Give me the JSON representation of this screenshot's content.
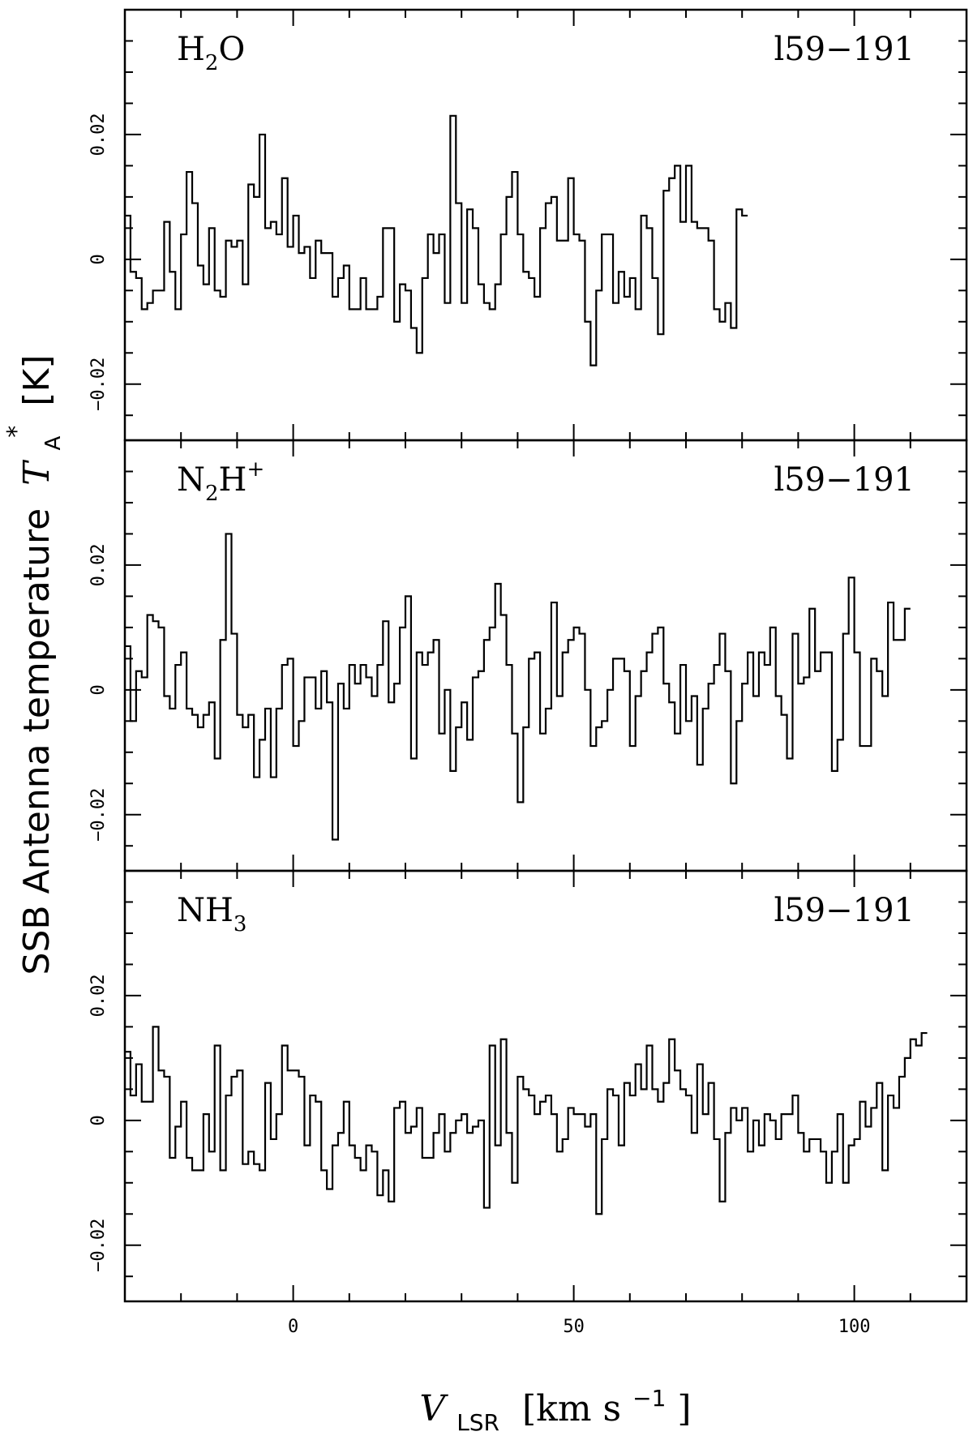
{
  "chart_data": {
    "type": "line",
    "xlabel": "V",
    "xlabel_sub": "LSR",
    "xlabel_unit": "[km s",
    "xlabel_unit_sup": "−1",
    "xlabel_unit_close": "]",
    "ylabel": "SSB Antenna temperature",
    "ylabel_symbol": "T",
    "ylabel_sub": "A",
    "ylabel_sup": "*",
    "ylabel_unit": "[K]",
    "xlim": [
      -30,
      120
    ],
    "x_ticks": [
      0,
      50,
      100
    ],
    "x_tick_labels": [
      "0",
      "50",
      "100"
    ],
    "panels": [
      {
        "molecule_main": "H",
        "molecule_sub": "2",
        "molecule_rest": "O",
        "molecule_sup": "",
        "source": "l59−191",
        "ylim": [
          -0.029,
          0.04
        ],
        "y_ticks": [
          -0.02,
          0,
          0.02
        ],
        "y_tick_labels": [
          "−0.02",
          "0",
          "0.02"
        ],
        "x_start": -30,
        "x_step": 1,
        "values": [
          0.007,
          -0.002,
          -0.003,
          -0.008,
          -0.007,
          -0.005,
          -0.005,
          0.006,
          -0.002,
          -0.008,
          0.004,
          0.014,
          0.009,
          -0.001,
          -0.004,
          0.005,
          -0.005,
          -0.006,
          0.003,
          0.002,
          0.003,
          -0.004,
          0.012,
          0.01,
          0.02,
          0.005,
          0.006,
          0.004,
          0.013,
          0.002,
          0.007,
          0.001,
          0.002,
          -0.003,
          0.003,
          0.001,
          0.001,
          -0.006,
          -0.003,
          -0.001,
          -0.008,
          -0.008,
          -0.003,
          -0.008,
          -0.008,
          -0.006,
          0.005,
          0.005,
          -0.01,
          -0.004,
          -0.005,
          -0.011,
          -0.015,
          -0.003,
          0.004,
          0.001,
          0.004,
          -0.007,
          0.023,
          0.009,
          -0.007,
          0.008,
          0.005,
          -0.004,
          -0.007,
          -0.008,
          -0.004,
          0.004,
          0.01,
          0.014,
          0.004,
          -0.002,
          -0.003,
          -0.006,
          0.005,
          0.009,
          0.01,
          0.003,
          0.003,
          0.013,
          0.004,
          0.003,
          -0.01,
          -0.017,
          -0.005,
          0.004,
          0.004,
          -0.007,
          -0.002,
          -0.006,
          -0.003,
          -0.008,
          0.007,
          0.005,
          -0.003,
          -0.012,
          0.011,
          0.013,
          0.015,
          0.006,
          0.015,
          0.006,
          0.005,
          0.005,
          0.003,
          -0.008,
          -0.01,
          -0.007,
          -0.011,
          0.008,
          0.007
        ],
        "x_end_extra": true
      },
      {
        "molecule_main": "N",
        "molecule_sub": "2",
        "molecule_rest": "H",
        "molecule_sup": "+",
        "source": "l59−191",
        "ylim": [
          -0.029,
          0.04
        ],
        "y_ticks": [
          -0.02,
          0,
          0.02
        ],
        "y_tick_labels": [
          "−0.02",
          "0",
          "0.02"
        ],
        "x_start": -30,
        "x_step": 1,
        "values": [
          0.007,
          -0.005,
          0.003,
          0.002,
          0.012,
          0.011,
          0.01,
          -0.001,
          -0.003,
          0.004,
          0.006,
          -0.003,
          -0.004,
          -0.006,
          -0.004,
          -0.002,
          -0.011,
          0.008,
          0.025,
          0.009,
          -0.004,
          -0.006,
          -0.004,
          -0.014,
          -0.008,
          -0.003,
          -0.014,
          -0.003,
          0.004,
          0.005,
          -0.009,
          -0.005,
          0.002,
          0.002,
          -0.003,
          0.003,
          -0.002,
          -0.024,
          0.001,
          -0.003,
          0.004,
          0.001,
          0.004,
          0.002,
          -0.001,
          0.004,
          0.011,
          -0.002,
          0.001,
          0.01,
          0.015,
          -0.011,
          0.006,
          0.004,
          0.006,
          0.008,
          -0.007,
          0.0,
          -0.013,
          -0.006,
          -0.002,
          -0.008,
          0.002,
          0.003,
          0.008,
          0.01,
          0.017,
          0.012,
          0.004,
          -0.007,
          -0.018,
          -0.006,
          0.005,
          0.006,
          -0.007,
          -0.003,
          0.014,
          -0.001,
          0.006,
          0.008,
          0.01,
          0.009,
          0.0,
          -0.009,
          -0.006,
          -0.005,
          0.0,
          0.005,
          0.005,
          0.003,
          -0.009,
          -0.001,
          0.003,
          0.006,
          0.009,
          0.01,
          0.001,
          -0.002,
          -0.007,
          0.004,
          -0.005,
          -0.001,
          -0.012,
          -0.003,
          0.001,
          0.004,
          0.009,
          0.003,
          -0.015,
          -0.005,
          0.001,
          0.006,
          -0.001,
          0.006,
          0.004,
          0.01,
          -0.001,
          -0.004,
          -0.011,
          0.009,
          0.001,
          0.002,
          0.013,
          0.003,
          0.006,
          0.006,
          -0.013,
          -0.008,
          0.009,
          0.018,
          0.006,
          -0.009,
          -0.009,
          0.005,
          0.003,
          -0.001,
          0.014,
          0.008,
          0.008,
          0.013
        ]
      },
      {
        "molecule_main": "NH",
        "molecule_sub": "3",
        "molecule_rest": "",
        "molecule_sup": "",
        "source": "l59−191",
        "ylim": [
          -0.029,
          0.04
        ],
        "y_ticks": [
          -0.02,
          0,
          0.02
        ],
        "y_tick_labels": [
          "−0.02",
          "0",
          "0.02"
        ],
        "x_start": -30,
        "x_step": 1,
        "values": [
          0.011,
          0.004,
          0.009,
          0.003,
          0.003,
          0.015,
          0.008,
          0.007,
          -0.006,
          -0.001,
          0.003,
          -0.006,
          -0.008,
          -0.008,
          0.001,
          -0.005,
          0.012,
          -0.008,
          0.004,
          0.007,
          0.008,
          -0.007,
          -0.005,
          -0.007,
          -0.008,
          0.006,
          -0.003,
          0.001,
          0.012,
          0.008,
          0.008,
          0.007,
          -0.004,
          0.004,
          0.003,
          -0.008,
          -0.011,
          -0.004,
          -0.002,
          0.003,
          -0.004,
          -0.006,
          -0.008,
          -0.004,
          -0.005,
          -0.012,
          -0.008,
          -0.013,
          0.002,
          0.003,
          -0.002,
          -0.001,
          0.002,
          -0.006,
          -0.006,
          -0.002,
          0.001,
          -0.005,
          -0.002,
          0.0,
          0.001,
          -0.002,
          -0.001,
          0.0,
          -0.014,
          0.012,
          -0.004,
          0.013,
          -0.002,
          -0.01,
          0.007,
          0.005,
          0.004,
          0.001,
          0.003,
          0.004,
          0.001,
          -0.005,
          -0.003,
          0.002,
          0.001,
          0.001,
          -0.001,
          0.001,
          -0.015,
          -0.003,
          0.005,
          0.004,
          -0.004,
          0.006,
          0.004,
          0.009,
          0.005,
          0.012,
          0.005,
          0.003,
          0.006,
          0.013,
          0.008,
          0.005,
          0.004,
          -0.002,
          0.009,
          0.001,
          0.006,
          -0.003,
          -0.013,
          -0.002,
          0.002,
          0.0,
          0.002,
          -0.005,
          0.0,
          -0.004,
          0.001,
          0.0,
          -0.003,
          0.001,
          0.001,
          0.004,
          -0.002,
          -0.005,
          -0.003,
          -0.003,
          -0.005,
          -0.01,
          -0.005,
          0.001,
          -0.01,
          -0.004,
          -0.003,
          0.003,
          -0.001,
          0.002,
          0.006,
          -0.008,
          0.004,
          0.002,
          0.007,
          0.01,
          0.013,
          0.012,
          0.014
        ]
      }
    ]
  }
}
